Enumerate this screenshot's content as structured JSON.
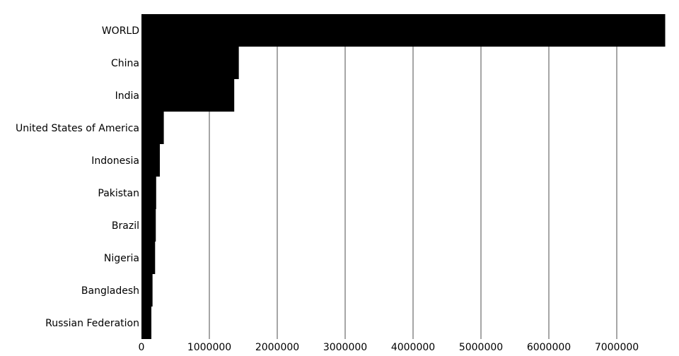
{
  "chart_data": {
    "type": "bar",
    "orientation": "horizontal",
    "categories": [
      "WORLD",
      "China",
      "India",
      "United States of America",
      "Indonesia",
      "Pakistan",
      "Brazil",
      "Nigeria",
      "Bangladesh",
      "Russian Federation"
    ],
    "values": [
      7713468,
      1433784,
      1366418,
      329065,
      270626,
      216565,
      211050,
      200964,
      163046,
      145872
    ],
    "xlim": [
      0,
      7713468
    ],
    "x_ticks": [
      0,
      1000000,
      2000000,
      3000000,
      4000000,
      5000000,
      6000000,
      7000000
    ],
    "x_tick_labels": [
      "0",
      "1000000",
      "2000000",
      "3000000",
      "4000000",
      "5000000",
      "6000000",
      "7000000"
    ],
    "grid": "vertical",
    "bar_color": "#000000",
    "grid_color": "#777777"
  }
}
